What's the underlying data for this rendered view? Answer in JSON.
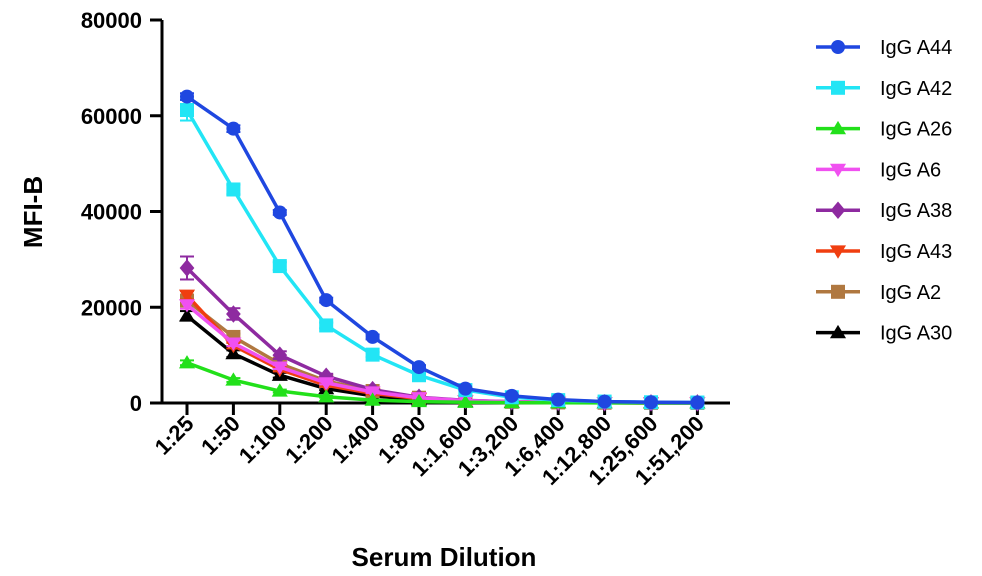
{
  "chart_data": {
    "type": "line",
    "title": "",
    "xlabel": "Serum Dilution",
    "ylabel": "MFI-B",
    "categories": [
      "1:25",
      "1:50",
      "1:100",
      "1:200",
      "1:400",
      "1:800",
      "1:1,600",
      "1:3,200",
      "1:6,400",
      "1:12,800",
      "1:25,600",
      "1:51,200"
    ],
    "ylim": [
      0,
      80000
    ],
    "yticks": [
      "0",
      "20000",
      "40000",
      "60000",
      "80000"
    ],
    "grid": false,
    "legend_position": "right",
    "series": [
      {
        "name": "IgG A44",
        "color": "#1f47e0",
        "marker": "circle",
        "values": [
          64000,
          57300,
          39800,
          21500,
          13800,
          7500,
          3000,
          1500,
          700,
          300,
          150,
          100
        ],
        "err": [
          700,
          700,
          500,
          500,
          500,
          400,
          200,
          150,
          100,
          50,
          50,
          50
        ]
      },
      {
        "name": "IgG A42",
        "color": "#22e5f5",
        "marker": "square",
        "values": [
          61200,
          44600,
          28600,
          16200,
          10100,
          5800,
          2700,
          1200,
          600,
          300,
          150,
          100
        ],
        "err": [
          2200,
          1000,
          800,
          600,
          500,
          400,
          200,
          150,
          100,
          50,
          50,
          50
        ]
      },
      {
        "name": "IgG A26",
        "color": "#22e01a",
        "marker": "triangle-up",
        "values": [
          8400,
          4800,
          2500,
          1300,
          600,
          300,
          150,
          80,
          50,
          30,
          20,
          10
        ],
        "err": [
          500,
          400,
          300,
          200,
          100,
          50,
          30,
          20,
          10,
          10,
          10,
          10
        ]
      },
      {
        "name": "IgG A6",
        "color": "#f050f0",
        "marker": "triangle-down",
        "values": [
          20500,
          12500,
          7500,
          4200,
          2300,
          1100,
          500,
          250,
          120,
          60,
          30,
          20
        ],
        "err": [
          800,
          600,
          400,
          300,
          200,
          100,
          50,
          30,
          20,
          10,
          10,
          10
        ]
      },
      {
        "name": "IgG A38",
        "color": "#8e2aa0",
        "marker": "diamond",
        "values": [
          28200,
          18600,
          10000,
          5600,
          2800,
          1200,
          550,
          260,
          130,
          60,
          30,
          20
        ],
        "err": [
          2400,
          1200,
          800,
          500,
          300,
          150,
          80,
          40,
          20,
          10,
          10,
          10
        ]
      },
      {
        "name": "IgG A43",
        "color": "#f03e10",
        "marker": "triangle-down",
        "values": [
          22500,
          12000,
          7000,
          3700,
          2000,
          900,
          400,
          200,
          100,
          50,
          30,
          20
        ],
        "err": [
          900,
          600,
          400,
          300,
          200,
          100,
          50,
          30,
          20,
          10,
          10,
          10
        ]
      },
      {
        "name": "IgG A2",
        "color": "#b07840",
        "marker": "square",
        "values": [
          21400,
          13800,
          8200,
          4600,
          2500,
          1100,
          500,
          250,
          120,
          60,
          30,
          20
        ],
        "err": [
          900,
          700,
          500,
          300,
          200,
          100,
          50,
          30,
          20,
          10,
          10,
          10
        ]
      },
      {
        "name": "IgG A30",
        "color": "#000000",
        "marker": "triangle-up",
        "values": [
          18200,
          10300,
          5800,
          3000,
          1500,
          650,
          280,
          140,
          70,
          40,
          20,
          10
        ],
        "err": [
          1000,
          700,
          500,
          300,
          150,
          80,
          40,
          20,
          10,
          10,
          10,
          10
        ]
      }
    ]
  }
}
